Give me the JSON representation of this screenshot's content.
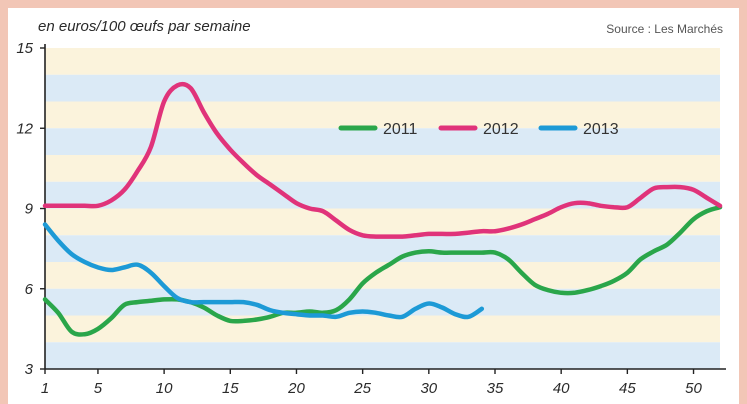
{
  "source": "Source : Les Marchés",
  "chart_data": {
    "type": "line",
    "title": "",
    "ylabel": "en euros/100 œufs par semaine",
    "xlabel": "",
    "ylim": [
      3,
      15
    ],
    "xlim": [
      1,
      52
    ],
    "x_ticks": [
      1,
      5,
      10,
      15,
      20,
      25,
      30,
      35,
      40,
      45,
      50
    ],
    "y_ticks": [
      3,
      6,
      9,
      12,
      15
    ],
    "legend_position": "top-right",
    "grid": "horizontal bands",
    "series": [
      {
        "name": "2011",
        "color": "#2aa64a",
        "x": [
          1,
          2,
          3,
          4,
          5,
          6,
          7,
          8,
          9,
          10,
          11,
          12,
          13,
          14,
          15,
          16,
          17,
          18,
          19,
          20,
          21,
          22,
          23,
          24,
          25,
          26,
          27,
          28,
          29,
          30,
          31,
          32,
          33,
          34,
          35,
          36,
          37,
          38,
          39,
          40,
          41,
          42,
          43,
          44,
          45,
          46,
          47,
          48,
          49,
          50,
          51,
          52
        ],
        "values": [
          5.6,
          5.1,
          4.4,
          4.3,
          4.5,
          4.9,
          5.4,
          5.5,
          5.55,
          5.6,
          5.6,
          5.5,
          5.3,
          5.0,
          4.8,
          4.8,
          4.85,
          4.95,
          5.1,
          5.1,
          5.15,
          5.1,
          5.2,
          5.6,
          6.2,
          6.6,
          6.9,
          7.2,
          7.35,
          7.4,
          7.35,
          7.35,
          7.35,
          7.35,
          7.35,
          7.1,
          6.6,
          6.15,
          5.95,
          5.85,
          5.85,
          5.95,
          6.1,
          6.3,
          6.6,
          7.1,
          7.4,
          7.65,
          8.1,
          8.6,
          8.9,
          9.05
        ]
      },
      {
        "name": "2012",
        "color": "#e0337a",
        "x": [
          1,
          2,
          3,
          4,
          5,
          6,
          7,
          8,
          9,
          10,
          11,
          12,
          13,
          14,
          15,
          16,
          17,
          18,
          19,
          20,
          21,
          22,
          23,
          24,
          25,
          26,
          27,
          28,
          29,
          30,
          31,
          32,
          33,
          34,
          35,
          36,
          37,
          38,
          39,
          40,
          41,
          42,
          43,
          44,
          45,
          46,
          47,
          48,
          49,
          50,
          51,
          52
        ],
        "values": [
          9.1,
          9.1,
          9.1,
          9.1,
          9.1,
          9.3,
          9.7,
          10.4,
          11.3,
          13.0,
          13.6,
          13.5,
          12.6,
          11.8,
          11.2,
          10.7,
          10.25,
          9.9,
          9.55,
          9.2,
          9.0,
          8.9,
          8.55,
          8.2,
          8.0,
          7.95,
          7.95,
          7.95,
          8.0,
          8.05,
          8.05,
          8.05,
          8.1,
          8.15,
          8.15,
          8.25,
          8.4,
          8.6,
          8.8,
          9.05,
          9.2,
          9.2,
          9.1,
          9.05,
          9.05,
          9.4,
          9.75,
          9.8,
          9.8,
          9.7,
          9.4,
          9.1
        ]
      },
      {
        "name": "2013",
        "color": "#1d9ad6",
        "x": [
          1,
          2,
          3,
          4,
          5,
          6,
          7,
          8,
          9,
          10,
          11,
          12,
          13,
          14,
          15,
          16,
          17,
          18,
          19,
          20,
          21,
          22,
          23,
          24,
          25,
          26,
          27,
          28,
          29,
          30,
          31,
          32,
          33,
          34
        ],
        "values": [
          8.4,
          7.8,
          7.3,
          7.0,
          6.8,
          6.7,
          6.8,
          6.9,
          6.6,
          6.1,
          5.65,
          5.5,
          5.5,
          5.5,
          5.5,
          5.5,
          5.4,
          5.2,
          5.1,
          5.05,
          5.0,
          5.0,
          4.95,
          5.1,
          5.15,
          5.1,
          5.0,
          4.95,
          5.25,
          5.45,
          5.3,
          5.05,
          4.95,
          5.25
        ]
      }
    ]
  }
}
